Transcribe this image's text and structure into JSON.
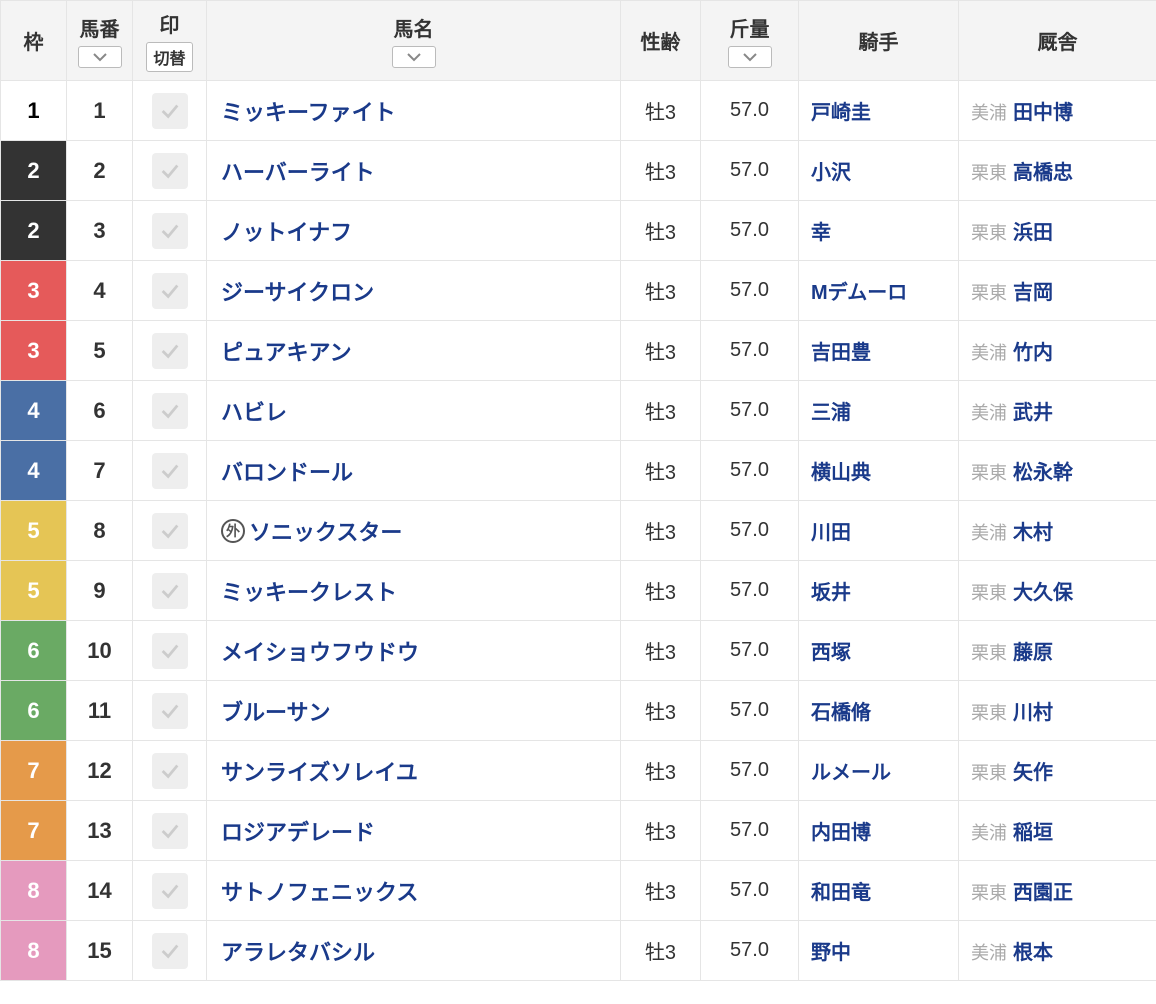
{
  "headers": {
    "waku": "枠",
    "umaban": "馬番",
    "mark": "印",
    "mark_toggle": "切替",
    "name": "馬名",
    "sei": "性齢",
    "kin": "斤量",
    "jockey": "騎手",
    "trainer": "厩舎"
  },
  "colors": {
    "link": "#1a3a8a",
    "header_bg": "#f4f4f4",
    "border": "#e5e5e5",
    "muted": "#aaaaaa",
    "waku": {
      "1": "#ffffff",
      "2": "#333333",
      "3": "#e55a5a",
      "4": "#4a6fa5",
      "5": "#e5c555",
      "6": "#6aaa64",
      "7": "#e59a4a",
      "8": "#e59abe"
    }
  },
  "rows": [
    {
      "waku": 1,
      "num": 1,
      "name": "ミッキーファイト",
      "gai": false,
      "sei": "牡3",
      "kin": "57.0",
      "jockey": "戸崎圭",
      "loc": "美浦",
      "trainer": "田中博"
    },
    {
      "waku": 2,
      "num": 2,
      "name": "ハーバーライト",
      "gai": false,
      "sei": "牡3",
      "kin": "57.0",
      "jockey": "小沢",
      "loc": "栗東",
      "trainer": "高橋忠"
    },
    {
      "waku": 2,
      "num": 3,
      "name": "ノットイナフ",
      "gai": false,
      "sei": "牡3",
      "kin": "57.0",
      "jockey": "幸",
      "loc": "栗東",
      "trainer": "浜田"
    },
    {
      "waku": 3,
      "num": 4,
      "name": "ジーサイクロン",
      "gai": false,
      "sei": "牡3",
      "kin": "57.0",
      "jockey": "Mデムーロ",
      "loc": "栗東",
      "trainer": "吉岡"
    },
    {
      "waku": 3,
      "num": 5,
      "name": "ピュアキアン",
      "gai": false,
      "sei": "牡3",
      "kin": "57.0",
      "jockey": "吉田豊",
      "loc": "美浦",
      "trainer": "竹内"
    },
    {
      "waku": 4,
      "num": 6,
      "name": "ハビレ",
      "gai": false,
      "sei": "牡3",
      "kin": "57.0",
      "jockey": "三浦",
      "loc": "美浦",
      "trainer": "武井"
    },
    {
      "waku": 4,
      "num": 7,
      "name": "バロンドール",
      "gai": false,
      "sei": "牡3",
      "kin": "57.0",
      "jockey": "横山典",
      "loc": "栗東",
      "trainer": "松永幹"
    },
    {
      "waku": 5,
      "num": 8,
      "name": "ソニックスター",
      "gai": true,
      "sei": "牡3",
      "kin": "57.0",
      "jockey": "川田",
      "loc": "美浦",
      "trainer": "木村"
    },
    {
      "waku": 5,
      "num": 9,
      "name": "ミッキークレスト",
      "gai": false,
      "sei": "牡3",
      "kin": "57.0",
      "jockey": "坂井",
      "loc": "栗東",
      "trainer": "大久保"
    },
    {
      "waku": 6,
      "num": 10,
      "name": "メイショウフウドウ",
      "gai": false,
      "sei": "牡3",
      "kin": "57.0",
      "jockey": "西塚",
      "loc": "栗東",
      "trainer": "藤原"
    },
    {
      "waku": 6,
      "num": 11,
      "name": "ブルーサン",
      "gai": false,
      "sei": "牡3",
      "kin": "57.0",
      "jockey": "石橋脩",
      "loc": "栗東",
      "trainer": "川村"
    },
    {
      "waku": 7,
      "num": 12,
      "name": "サンライズソレイユ",
      "gai": false,
      "sei": "牡3",
      "kin": "57.0",
      "jockey": "ルメール",
      "loc": "栗東",
      "trainer": "矢作"
    },
    {
      "waku": 7,
      "num": 13,
      "name": "ロジアデレード",
      "gai": false,
      "sei": "牡3",
      "kin": "57.0",
      "jockey": "内田博",
      "loc": "美浦",
      "trainer": "稲垣"
    },
    {
      "waku": 8,
      "num": 14,
      "name": "サトノフェニックス",
      "gai": false,
      "sei": "牡3",
      "kin": "57.0",
      "jockey": "和田竜",
      "loc": "栗東",
      "trainer": "西園正"
    },
    {
      "waku": 8,
      "num": 15,
      "name": "アラレタバシル",
      "gai": false,
      "sei": "牡3",
      "kin": "57.0",
      "jockey": "野中",
      "loc": "美浦",
      "trainer": "根本"
    }
  ]
}
